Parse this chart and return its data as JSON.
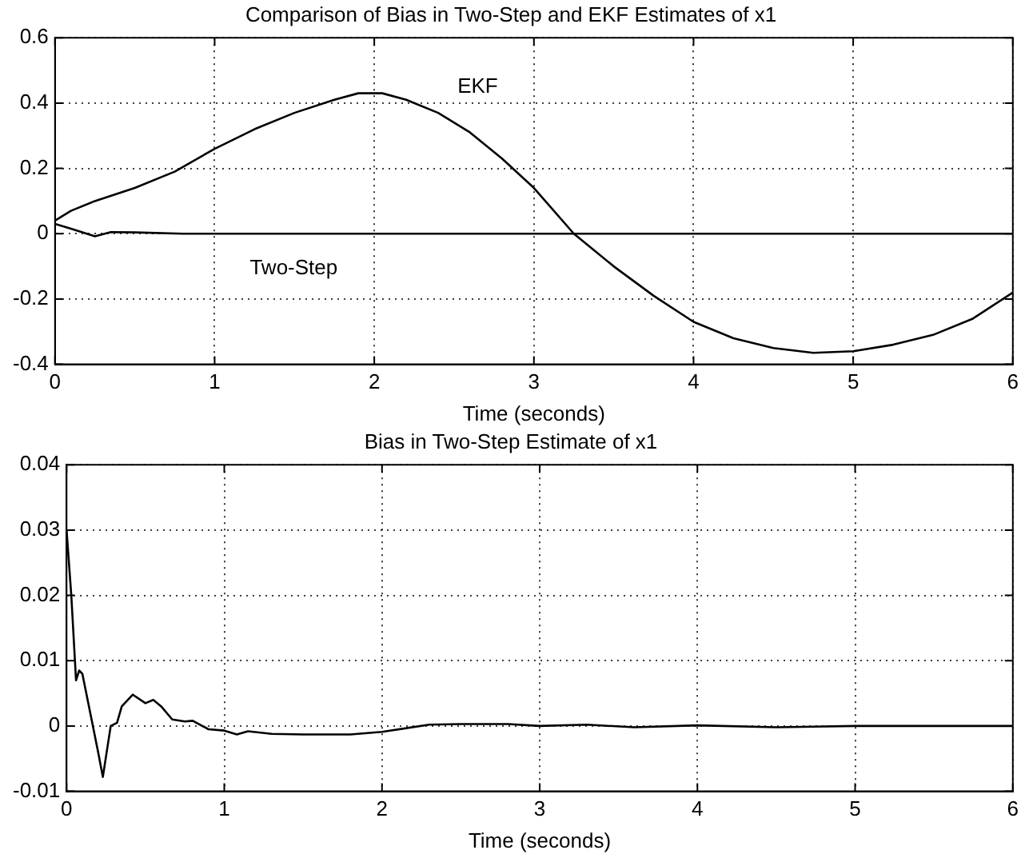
{
  "chart_data": [
    {
      "type": "line",
      "title": "Comparison of Bias in Two-Step and EKF Estimates of x1",
      "xlabel": "Time (seconds)",
      "xlim": [
        0,
        6
      ],
      "xticks": [
        0,
        1,
        2,
        3,
        4,
        5,
        6
      ],
      "ylim": [
        -0.4,
        0.6
      ],
      "yticks": [
        -0.4,
        -0.2,
        0,
        0.2,
        0.4,
        0.6
      ],
      "grid": true,
      "legend": false,
      "marker": "none",
      "line_style": "solid",
      "series": [
        {
          "name": "EKF",
          "color": "#000000",
          "x": [
            0,
            0.1,
            0.25,
            0.5,
            0.75,
            1,
            1.25,
            1.5,
            1.75,
            1.9,
            2.05,
            2.2,
            2.4,
            2.6,
            2.8,
            3,
            3.25,
            3.5,
            3.75,
            4,
            4.25,
            4.5,
            4.75,
            5,
            5.25,
            5.5,
            5.75,
            6
          ],
          "values": [
            0.04,
            0.07,
            0.1,
            0.14,
            0.19,
            0.26,
            0.32,
            0.37,
            0.41,
            0.43,
            0.43,
            0.41,
            0.37,
            0.31,
            0.23,
            0.14,
            0.0,
            -0.1,
            -0.19,
            -0.27,
            -0.32,
            -0.35,
            -0.365,
            -0.36,
            -0.34,
            -0.31,
            -0.26,
            -0.18
          ]
        },
        {
          "name": "Two-Step",
          "color": "#000000",
          "x": [
            0,
            0.1,
            0.25,
            0.35,
            0.5,
            0.8,
            1.5,
            3,
            4.5,
            6
          ],
          "values": [
            0.03,
            0.015,
            -0.008,
            0.005,
            0.004,
            0.0,
            0.0,
            0.0,
            0.0,
            0.0
          ]
        }
      ]
    },
    {
      "type": "line",
      "title": "Bias in Two-Step Estimate of x1",
      "xlabel": "Time (seconds)",
      "xlim": [
        0,
        6
      ],
      "xticks": [
        0,
        1,
        2,
        3,
        4,
        5,
        6
      ],
      "ylim": [
        -0.01,
        0.04
      ],
      "yticks": [
        -0.01,
        0,
        0.01,
        0.02,
        0.03,
        0.04
      ],
      "grid": true,
      "legend": false,
      "marker": "none",
      "line_style": "solid",
      "series": [
        {
          "color": "#000000",
          "x": [
            0,
            0.03,
            0.06,
            0.08,
            0.1,
            0.15,
            0.2,
            0.23,
            0.28,
            0.32,
            0.35,
            0.42,
            0.5,
            0.55,
            0.6,
            0.67,
            0.75,
            0.8,
            0.9,
            1,
            1.08,
            1.15,
            1.3,
            1.5,
            1.8,
            2,
            2.3,
            2.5,
            2.8,
            3,
            3.3,
            3.6,
            4,
            4.5,
            5,
            5.2,
            6
          ],
          "values": [
            0.03,
            0.02,
            0.007,
            0.0085,
            0.008,
            0.002,
            -0.004,
            -0.0078,
            0,
            0.0005,
            0.003,
            0.0048,
            0.0035,
            0.004,
            0.003,
            0.001,
            0.0007,
            0.0008,
            -0.0005,
            -0.0007,
            -0.0013,
            -0.0008,
            -0.0012,
            -0.0013,
            -0.0013,
            -0.0009,
            0.0002,
            0.0003,
            0.0003,
            0,
            0.0002,
            -0.0002,
            0.0001,
            -0.0002,
            0,
            0,
            0
          ]
        }
      ]
    }
  ]
}
